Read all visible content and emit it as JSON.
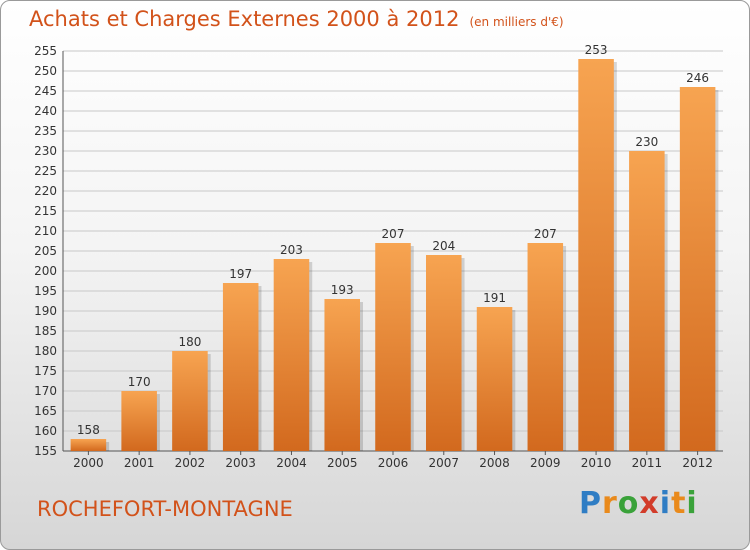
{
  "header": {
    "title": "Achats et Charges Externes 2000 à 2012",
    "subtitle": "(en milliers d'€)"
  },
  "footer": {
    "commune": "ROCHEFORT-MONTAGNE",
    "logo": [
      "P",
      "r",
      "o",
      "x",
      "i",
      "t",
      "i"
    ]
  },
  "colors": {
    "bar_light": "#f7a451",
    "bar_dark": "#d2691e",
    "title": "#d2521a",
    "logo": [
      "#2f7dc4",
      "#e98a1c",
      "#3aa23a",
      "#d23c2a",
      "#2f7dc4",
      "#e98a1c",
      "#3aa23a"
    ]
  },
  "chart_data": {
    "type": "bar",
    "title": "Achats et Charges Externes 2000 à 2012",
    "categories": [
      "2000",
      "2001",
      "2002",
      "2003",
      "2004",
      "2005",
      "2006",
      "2007",
      "2008",
      "2009",
      "2010",
      "2011",
      "2012"
    ],
    "values": [
      158,
      170,
      180,
      197,
      203,
      193,
      207,
      204,
      191,
      207,
      253,
      230,
      246
    ],
    "ylim": [
      155,
      255
    ],
    "yticks": [
      155,
      160,
      165,
      170,
      175,
      180,
      185,
      190,
      195,
      200,
      205,
      210,
      215,
      220,
      225,
      230,
      235,
      240,
      245,
      250,
      255
    ],
    "grid": true,
    "xlabel": "",
    "ylabel": ""
  }
}
